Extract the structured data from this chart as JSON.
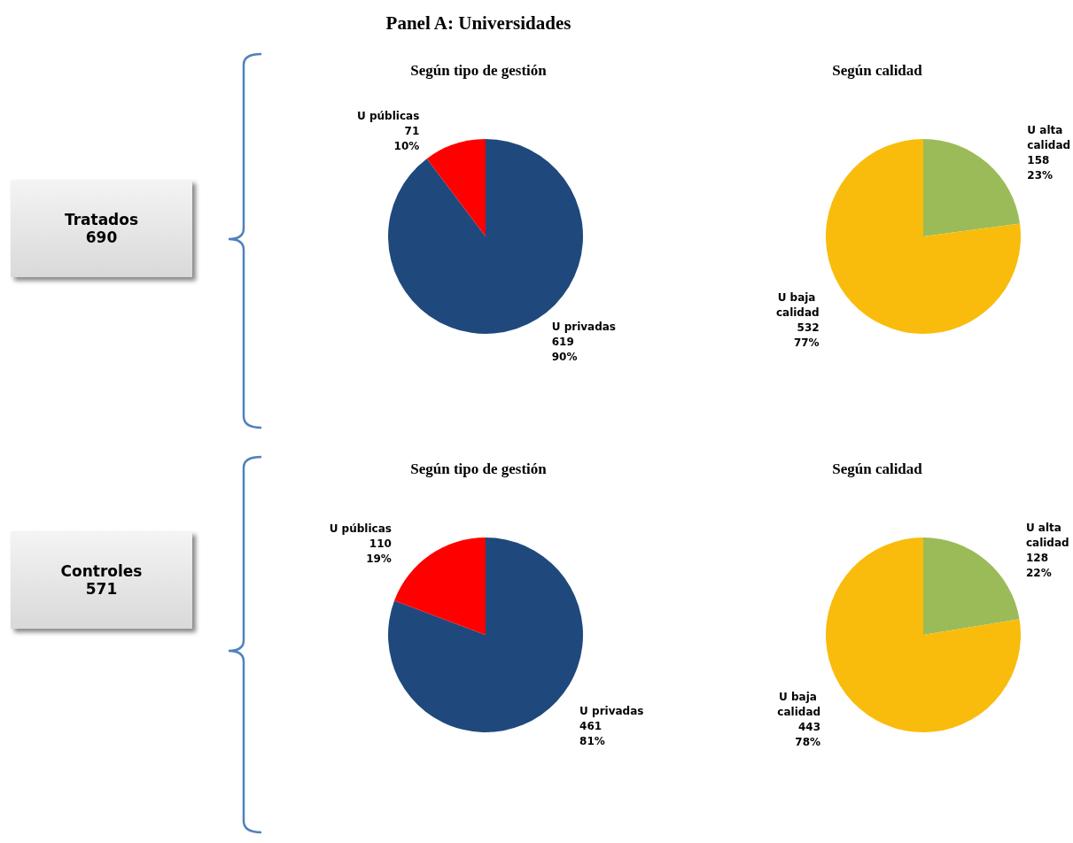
{
  "chart_data": [
    {
      "type": "other",
      "title": "Panel A: Universidades"
    },
    {
      "type": "other",
      "title": "Tratados",
      "annotations": [
        "690"
      ]
    },
    {
      "type": "pie",
      "title": "Según tipo de gestión",
      "categories": [
        "U privadas",
        "U públicas"
      ],
      "values": [
        619,
        71
      ],
      "colors": [
        "#1f497d",
        "#ff0000"
      ],
      "value_labels": [
        "619\n90%",
        "71\n10%"
      ]
    },
    {
      "type": "pie",
      "title": "Según calidad",
      "categories": [
        "U alta calidad",
        "U baja calidad"
      ],
      "values": [
        158,
        532
      ],
      "colors": [
        "#9bbb59",
        "#f9bc0c"
      ],
      "value_labels": [
        "158\n23%",
        "532\n77%"
      ]
    },
    {
      "type": "other",
      "title": "Controles",
      "annotations": [
        "571"
      ]
    },
    {
      "type": "pie",
      "title": "Según tipo de gestión",
      "categories": [
        "U privadas",
        "U públicas"
      ],
      "values": [
        461,
        110
      ],
      "colors": [
        "#1f497d",
        "#ff0000"
      ],
      "value_labels": [
        "461\n81%",
        "110\n19%"
      ]
    },
    {
      "type": "pie",
      "title": "Según calidad",
      "categories": [
        "U alta calidad",
        "U baja calidad"
      ],
      "values": [
        128,
        443
      ],
      "colors": [
        "#9bbb59",
        "#f9bc0c"
      ],
      "value_labels": [
        "128\n22%",
        "443\n78%"
      ]
    }
  ]
}
